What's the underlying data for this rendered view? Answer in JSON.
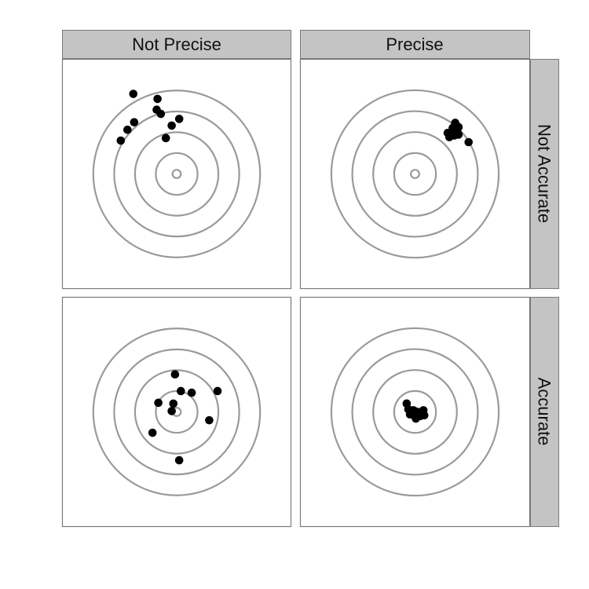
{
  "chart_data": {
    "type": "scatter",
    "facets": {
      "columns": [
        "Not Precise",
        "Precise"
      ],
      "rows": [
        "Not Accurate",
        "Accurate"
      ]
    },
    "xlim": [
      -1,
      1
    ],
    "ylim": [
      -1,
      1
    ],
    "target_ring_radii": [
      0.05,
      0.25,
      0.5,
      0.75,
      1.0
    ],
    "ring_color": "#9a9a9a",
    "point_color": "#000000",
    "strip_fill": "#c4c4c4",
    "grid": false,
    "panels": [
      {
        "column": "Not Precise",
        "row": "Not Accurate",
        "points": [
          {
            "x": -0.52,
            "y": 0.96
          },
          {
            "x": -0.23,
            "y": 0.9
          },
          {
            "x": -0.24,
            "y": 0.77
          },
          {
            "x": -0.19,
            "y": 0.72
          },
          {
            "x": 0.03,
            "y": 0.66
          },
          {
            "x": -0.51,
            "y": 0.62
          },
          {
            "x": -0.06,
            "y": 0.58
          },
          {
            "x": -0.59,
            "y": 0.53
          },
          {
            "x": -0.13,
            "y": 0.43
          },
          {
            "x": -0.67,
            "y": 0.4
          }
        ]
      },
      {
        "column": "Precise",
        "row": "Not Accurate",
        "points": [
          {
            "x": 0.48,
            "y": 0.61
          },
          {
            "x": 0.52,
            "y": 0.56
          },
          {
            "x": 0.45,
            "y": 0.55
          },
          {
            "x": 0.5,
            "y": 0.52
          },
          {
            "x": 0.39,
            "y": 0.49
          },
          {
            "x": 0.43,
            "y": 0.47
          },
          {
            "x": 0.47,
            "y": 0.46
          },
          {
            "x": 0.52,
            "y": 0.47
          },
          {
            "x": 0.41,
            "y": 0.44
          },
          {
            "x": 0.64,
            "y": 0.38
          }
        ]
      },
      {
        "column": "Not Precise",
        "row": "Accurate",
        "points": [
          {
            "x": -0.02,
            "y": 0.45
          },
          {
            "x": 0.05,
            "y": 0.25
          },
          {
            "x": 0.18,
            "y": 0.23
          },
          {
            "x": 0.49,
            "y": 0.25
          },
          {
            "x": -0.22,
            "y": 0.11
          },
          {
            "x": -0.04,
            "y": 0.1
          },
          {
            "x": -0.06,
            "y": 0.01
          },
          {
            "x": 0.39,
            "y": -0.1
          },
          {
            "x": -0.29,
            "y": -0.25
          },
          {
            "x": 0.03,
            "y": -0.58
          }
        ]
      },
      {
        "column": "Precise",
        "row": "Accurate",
        "points": [
          {
            "x": -0.1,
            "y": 0.1
          },
          {
            "x": -0.08,
            "y": 0.03
          },
          {
            "x": -0.02,
            "y": 0.02
          },
          {
            "x": 0.03,
            "y": 0.0
          },
          {
            "x": 0.1,
            "y": 0.02
          },
          {
            "x": -0.06,
            "y": -0.03
          },
          {
            "x": 0.0,
            "y": -0.05
          },
          {
            "x": 0.06,
            "y": -0.05
          },
          {
            "x": 0.11,
            "y": -0.04
          },
          {
            "x": 0.01,
            "y": -0.08
          }
        ]
      }
    ]
  }
}
